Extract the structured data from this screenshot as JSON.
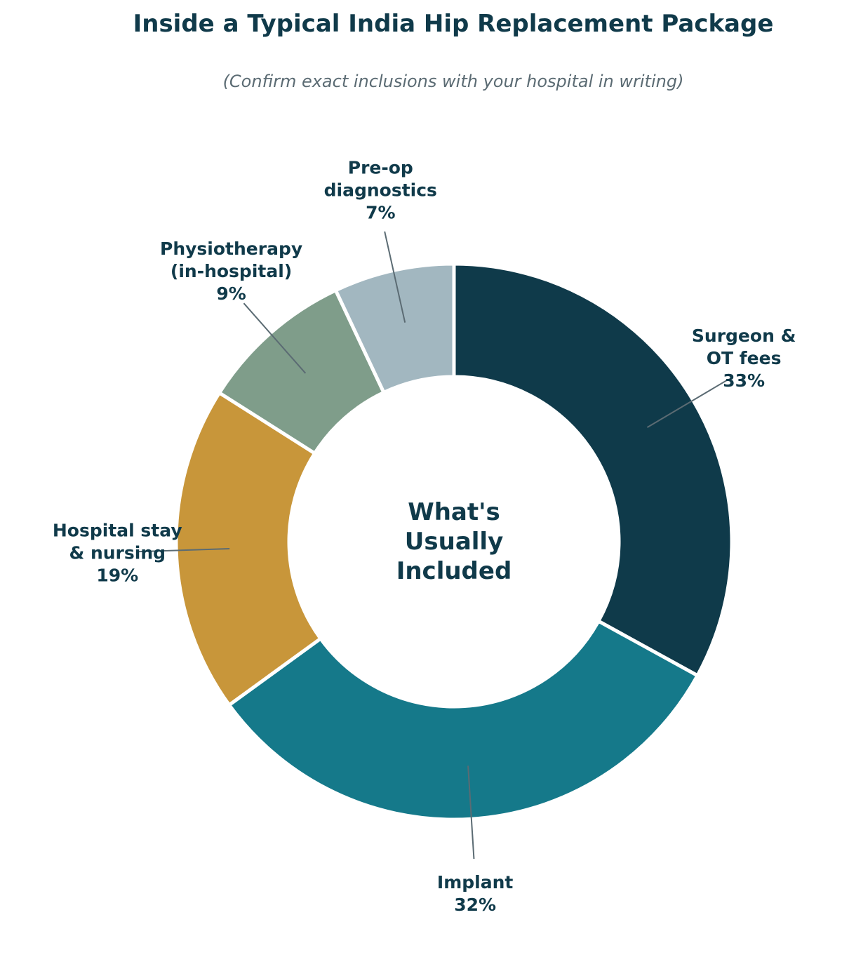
{
  "header": {
    "title": "Inside a Typical India Hip Replacement Package",
    "subtitle": "(Confirm exact inclusions with your hospital in writing)"
  },
  "chart_data": {
    "type": "pie",
    "style": "donut",
    "title": "Inside a Typical India Hip Replacement Package",
    "subtitle": "(Confirm exact inclusions with your hospital in writing)",
    "center_label": [
      "What's",
      "Usually",
      "Included"
    ],
    "start_angle": "12 o'clock, clockwise",
    "slices": [
      {
        "label_lines": [
          "Surgeon &",
          "OT fees"
        ],
        "value": 33,
        "pct_text": "33%",
        "color": "#0f3a4a"
      },
      {
        "label_lines": [
          "Implant"
        ],
        "value": 32,
        "pct_text": "32%",
        "color": "#15798a"
      },
      {
        "label_lines": [
          "Hospital stay",
          "& nursing"
        ],
        "value": 19,
        "pct_text": "19%",
        "color": "#c8963a"
      },
      {
        "label_lines": [
          "Physiotherapy",
          "(in-hospital)"
        ],
        "value": 9,
        "pct_text": "9%",
        "color": "#7f9d8a"
      },
      {
        "label_lines": [
          "Pre-op",
          "diagnostics"
        ],
        "value": 7,
        "pct_text": "7%",
        "color": "#a2b7c0"
      }
    ],
    "label_color": "#103a4a",
    "leader_color": "#5b6b73",
    "legend": "none"
  }
}
